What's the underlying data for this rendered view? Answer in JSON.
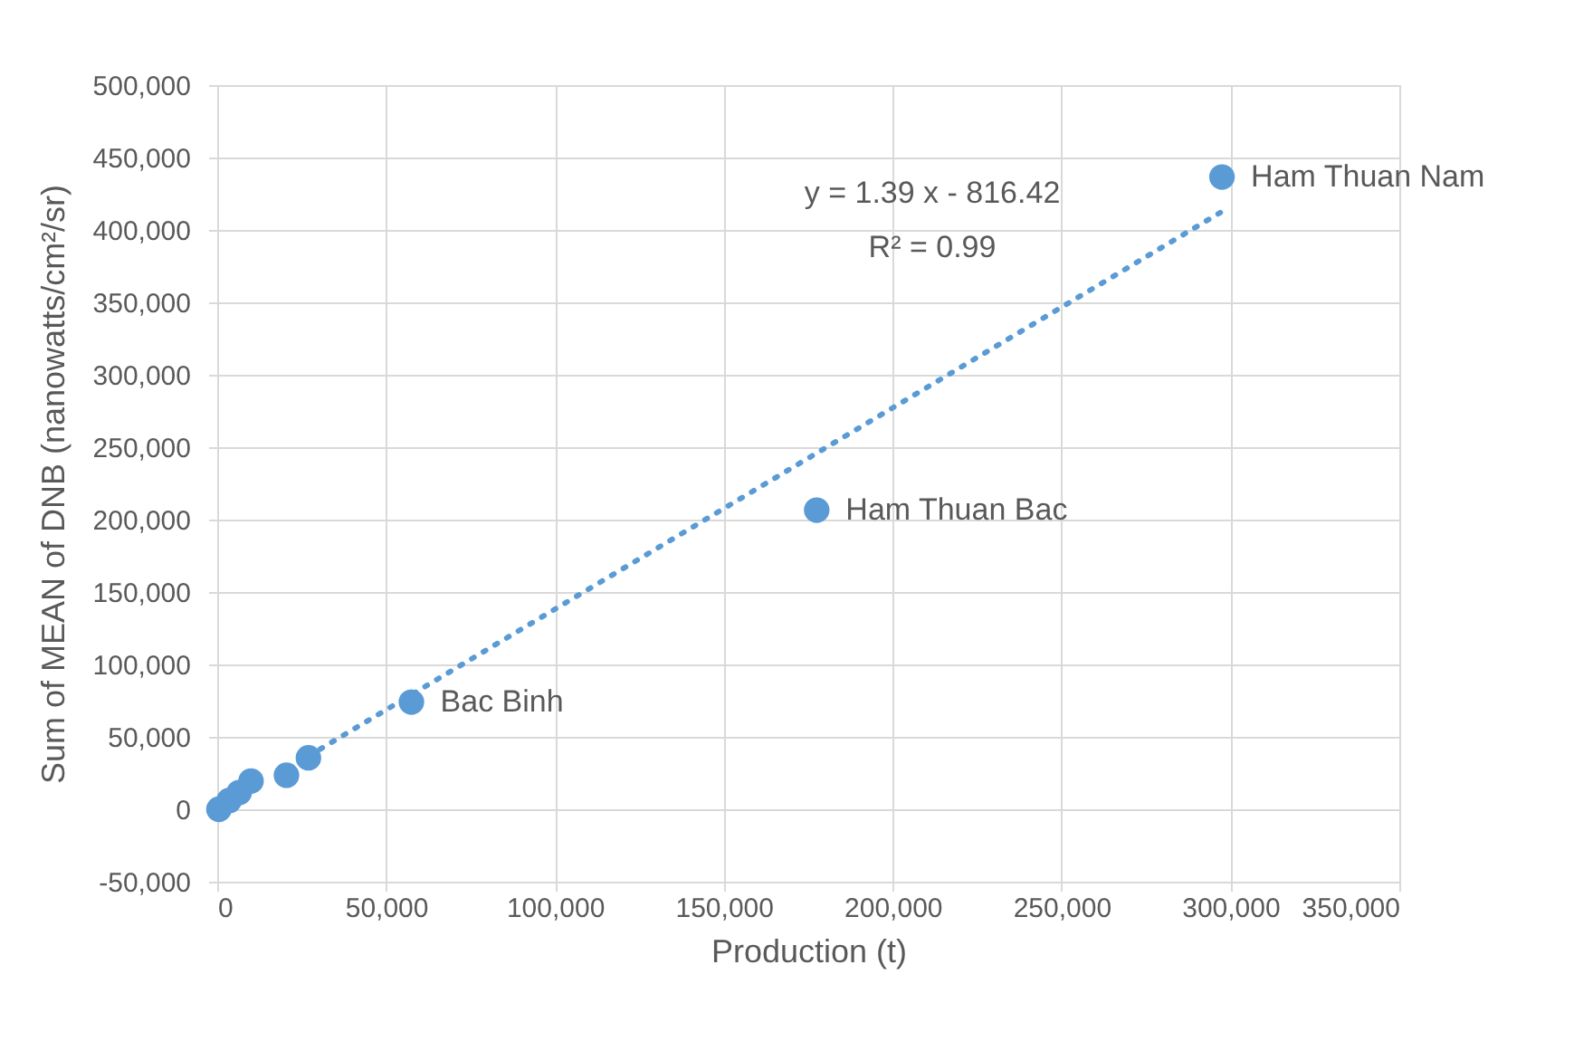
{
  "chart_data": {
    "type": "scatter",
    "xlabel": "Production (t)",
    "ylabel": "Sum of MEAN of DNB (nanowatts/cm²/sr)",
    "xlim": [
      0,
      350000
    ],
    "xticks": [
      0,
      {
        "value": 50000,
        "label": "50,000"
      },
      {
        "value": 100000,
        "label": "100,000"
      },
      {
        "value": 150000,
        "label": "150,000"
      },
      {
        "value": 200000,
        "label": "200,000"
      },
      {
        "value": 250000,
        "label": "250,000"
      },
      {
        "value": 300000,
        "label": "300,000"
      },
      {
        "value": 350000,
        "label": "350,000"
      }
    ],
    "ylim": [
      -50000,
      500000
    ],
    "yticks": [
      {
        "value": -50000,
        "label": "-50,000"
      },
      0,
      {
        "value": 50000,
        "label": "50,000"
      },
      {
        "value": 100000,
        "label": "100,000"
      },
      {
        "value": 150000,
        "label": "150,000"
      },
      {
        "value": 200000,
        "label": "200,000"
      },
      {
        "value": 250000,
        "label": "250,000"
      },
      {
        "value": 300000,
        "label": "300,000"
      },
      {
        "value": 350000,
        "label": "350,000"
      },
      {
        "value": 400000,
        "label": "400,000"
      },
      {
        "value": 450000,
        "label": "450,000"
      },
      {
        "value": 500000,
        "label": "500,000"
      }
    ],
    "grid": true,
    "series": [
      {
        "marker": "circle",
        "color": "#5b9bd5",
        "x": [
          500,
          3500,
          6500,
          10000,
          20500,
          27000,
          57500,
          177500,
          297500
        ],
        "values": [
          0,
          6000,
          11500,
          19500,
          23500,
          35500,
          74000,
          206500,
          436500
        ]
      },
      {
        "type": "line",
        "marker": "none",
        "color": "#5b9bd5",
        "line_style": "dotted",
        "x": [
          27000,
          297000
        ],
        "values": [
          36700,
          412000
        ]
      }
    ],
    "annotations": [
      {
        "text": "Bac Binh",
        "x": 57500,
        "y": 74000
      },
      {
        "text": "Ham Thuan Bac",
        "x": 177500,
        "y": 206500
      },
      {
        "text": "Ham Thuan Nam",
        "x": 297500,
        "y": 436500
      },
      "y = 1.39 x - 816.42",
      "R² = 0.99"
    ]
  }
}
